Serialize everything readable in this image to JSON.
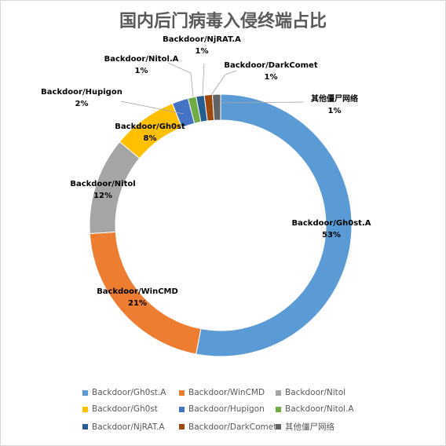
{
  "chart_data": {
    "type": "pie",
    "title": "国内后门病毒入侵终端占比",
    "donut": true,
    "legend_position": "bottom",
    "slices": [
      {
        "name": "Backdoor/Gh0st.A",
        "value": 53,
        "label": "53%",
        "color": "#5b9bd5"
      },
      {
        "name": "Backdoor/WinCMD",
        "value": 21,
        "label": "21%",
        "color": "#ed7d31"
      },
      {
        "name": "Backdoor/Nitol",
        "value": 12,
        "label": "12%",
        "color": "#a5a5a5"
      },
      {
        "name": "Backdoor/Gh0st",
        "value": 8,
        "label": "8%",
        "color": "#ffc000"
      },
      {
        "name": "Backdoor/Hupigon",
        "value": 2,
        "label": "2%",
        "color": "#4472c4"
      },
      {
        "name": "Backdoor/Nitol.A",
        "value": 1,
        "label": "1%",
        "color": "#70ad47"
      },
      {
        "name": "Backdoor/NjRAT.A",
        "value": 1,
        "label": "1%",
        "color": "#255e91"
      },
      {
        "name": "Backdoor/DarkComet",
        "value": 1,
        "label": "1%",
        "color": "#9e480e"
      },
      {
        "name": "其他僵尸网络",
        "value": 1,
        "label": "1%",
        "color": "#636363"
      }
    ]
  }
}
